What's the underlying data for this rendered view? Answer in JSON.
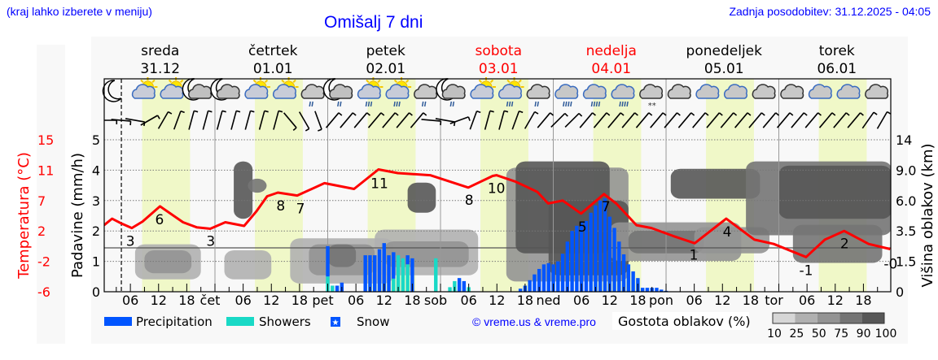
{
  "header": {
    "hint": "(kraj lahko izberete v meniju)",
    "title": "Omišalj 7 dni",
    "updated": "Zadnja posodobitev: 31.12.2025 - 04:05"
  },
  "days": [
    {
      "name": "sreda",
      "date": "31.12",
      "weekend": false
    },
    {
      "name": "četrtek",
      "date": "01.01",
      "weekend": false
    },
    {
      "name": "petek",
      "date": "02.01",
      "weekend": false
    },
    {
      "name": "sobota",
      "date": "03.01",
      "weekend": true
    },
    {
      "name": "nedelja",
      "date": "04.01",
      "weekend": true
    },
    {
      "name": "ponedeljek",
      "date": "05.01",
      "weekend": false
    },
    {
      "name": "torek",
      "date": "06.01",
      "weekend": false
    }
  ],
  "colors": {
    "temperature": "#ff0000",
    "precipitation": "#0055ff",
    "showers": "#19d9c6",
    "daylight": "#f0f8c8",
    "weekend": "#ff0000",
    "link": "#0000ff"
  },
  "chart_data": {
    "type": "line",
    "x_unit": "hours since 31.12 00:00",
    "xlim": [
      0.4,
      168
    ],
    "now_hour": 4.08,
    "daylight_hours": [
      8.5,
      18.7
    ],
    "x_tick_labels": {
      "hours": [
        "06",
        "12",
        "18"
      ],
      "midnights": [
        "čet",
        "pet",
        "sob",
        "ned",
        "pon",
        "tor"
      ]
    },
    "y_left": {
      "label": "Padavine (mm/h)",
      "ticks": [
        "0",
        "1",
        "2",
        "3",
        "4",
        "5"
      ],
      "ylim": [
        0,
        5.3
      ]
    },
    "y_temp": {
      "label": "Temperatura (°C)",
      "ticks": [
        "-6",
        "-2",
        "2",
        "7",
        "11",
        "15"
      ],
      "ylim": [
        -6,
        15
      ]
    },
    "y_right": {
      "label": "Višina oblakov (km)",
      "ticks": [
        "0",
        "1.5",
        "3.5",
        "6.0",
        "9.0",
        "14"
      ]
    },
    "temperature": [
      [
        0.4,
        3.2
      ],
      [
        2.1,
        4.1
      ],
      [
        4.2,
        3.4
      ],
      [
        6.3,
        2.8
      ],
      [
        8.6,
        3.7
      ],
      [
        12.3,
        5.8
      ],
      [
        17.2,
        3.6
      ],
      [
        20.1,
        2.9
      ],
      [
        23.0,
        2.7
      ],
      [
        26.2,
        3.6
      ],
      [
        30.2,
        3.1
      ],
      [
        32.8,
        5.1
      ],
      [
        35.1,
        7.2
      ],
      [
        37.4,
        7.7
      ],
      [
        41.5,
        7.3
      ],
      [
        47.3,
        9.0
      ],
      [
        53.6,
        8.2
      ],
      [
        58.8,
        10.9
      ],
      [
        62.9,
        10.4
      ],
      [
        69.8,
        10.1
      ],
      [
        77.9,
        8.4
      ],
      [
        83.1,
        10.0
      ],
      [
        83.9,
        10.1
      ],
      [
        88.0,
        9.2
      ],
      [
        92.6,
        7.8
      ],
      [
        94.9,
        6.2
      ],
      [
        98.0,
        6.6
      ],
      [
        101.9,
        4.8
      ],
      [
        106.8,
        7.5
      ],
      [
        109.4,
        6.2
      ],
      [
        113.7,
        3.2
      ],
      [
        116.9,
        2.8
      ],
      [
        121.5,
        1.7
      ],
      [
        126.1,
        0.7
      ],
      [
        132.8,
        4.1
      ],
      [
        138.8,
        1.2
      ],
      [
        142.9,
        0.6
      ],
      [
        149.8,
        -1.2
      ],
      [
        153.8,
        1.2
      ],
      [
        157.9,
        2.4
      ],
      [
        163.1,
        0.6
      ],
      [
        167.7,
        -0.1
      ]
    ],
    "temperature_labels": [
      {
        "hour": 6.0,
        "t": 1.0,
        "text": "3"
      },
      {
        "hour": 12.2,
        "t": 4.0,
        "text": "6"
      },
      {
        "hour": 23.1,
        "t": 1.0,
        "text": "3"
      },
      {
        "hour": 38.0,
        "t": 5.9,
        "text": "8"
      },
      {
        "hour": 42.2,
        "t": 5.5,
        "text": "7"
      },
      {
        "hour": 59.0,
        "t": 9.0,
        "text": "11"
      },
      {
        "hour": 78.1,
        "t": 6.7,
        "text": "8"
      },
      {
        "hour": 83.9,
        "t": 8.3,
        "text": "10"
      },
      {
        "hour": 102.2,
        "t": 3.0,
        "text": "5"
      },
      {
        "hour": 107.2,
        "t": 5.8,
        "text": "7"
      },
      {
        "hour": 125.9,
        "t": -0.9,
        "text": "1"
      },
      {
        "hour": 133.0,
        "t": 2.3,
        "text": "4"
      },
      {
        "hour": 149.8,
        "t": -3.0,
        "text": "-1"
      },
      {
        "hour": 158.0,
        "t": 0.7,
        "text": "2"
      },
      {
        "hour": 167.8,
        "t": -2.1,
        "text": "-0"
      }
    ],
    "precipitation": [
      [
        48,
        1.5,
        0.5
      ],
      [
        49,
        0.2,
        0.2
      ],
      [
        50,
        0.2,
        0
      ],
      [
        51,
        0.3,
        0
      ],
      [
        56,
        1.2,
        0
      ],
      [
        57,
        1.2,
        0
      ],
      [
        58,
        1.2,
        0
      ],
      [
        59,
        1.4,
        0
      ],
      [
        60,
        1.6,
        0
      ],
      [
        61,
        1.2,
        0
      ],
      [
        62,
        1.3,
        0.43
      ],
      [
        63,
        1.2,
        1.2
      ],
      [
        64,
        1.1,
        1.1
      ],
      [
        65,
        1.2,
        0.9
      ],
      [
        66,
        1.1,
        0
      ],
      [
        71,
        1.1,
        1.1
      ],
      [
        74,
        0.15,
        0.15
      ],
      [
        75,
        0.35,
        0.35
      ],
      [
        76,
        0.45,
        0
      ],
      [
        77,
        0.35,
        0
      ],
      [
        78,
        0.15,
        0.15
      ],
      [
        89,
        0.1,
        0
      ],
      [
        90,
        0.2,
        0
      ],
      [
        91,
        0.38,
        0
      ],
      [
        92,
        0.57,
        0
      ],
      [
        93,
        0.75,
        0
      ],
      [
        94,
        0.9,
        0
      ],
      [
        95,
        0.94,
        0
      ],
      [
        96,
        0.9,
        0
      ],
      [
        97,
        1.0,
        0
      ],
      [
        98,
        1.25,
        0
      ],
      [
        99,
        1.65,
        0
      ],
      [
        100,
        2.0,
        0
      ],
      [
        101,
        2.17,
        0
      ],
      [
        102,
        2.3,
        0
      ],
      [
        103,
        2.33,
        0
      ],
      [
        104,
        2.6,
        0
      ],
      [
        105,
        2.84,
        0
      ],
      [
        106,
        3.0,
        0
      ],
      [
        107,
        3.07,
        0
      ],
      [
        108,
        2.47,
        0
      ],
      [
        109,
        2.1,
        0
      ],
      [
        110,
        1.65,
        0
      ],
      [
        111,
        1.23,
        0
      ],
      [
        112,
        0.9,
        0
      ],
      [
        113,
        0.67,
        0
      ],
      [
        114,
        0.45,
        0
      ],
      [
        115,
        0.13,
        0
      ],
      [
        116,
        0.13,
        0
      ],
      [
        117,
        0.13,
        0
      ],
      [
        118,
        0.13,
        0
      ],
      [
        119,
        0.07,
        0
      ],
      [
        120,
        0.03,
        0
      ]
    ],
    "cloud_density": [
      {
        "h": [
          7,
          21
        ],
        "km": [
          0.6,
          2.6
        ],
        "d": 25
      },
      {
        "h": [
          9,
          19
        ],
        "km": [
          0.9,
          2.2
        ],
        "d": 50
      },
      {
        "h": [
          26,
          36
        ],
        "km": [
          0.6,
          2.2
        ],
        "d": 25
      },
      {
        "h": [
          28,
          32
        ],
        "km": [
          4.5,
          10.5
        ],
        "d": 90
      },
      {
        "h": [
          31,
          35
        ],
        "km": [
          6.8,
          8.2
        ],
        "d": 75
      },
      {
        "h": [
          40,
          62
        ],
        "km": [
          0.4,
          3.0
        ],
        "d": 25
      },
      {
        "h": [
          44,
          58
        ],
        "km": [
          0.8,
          2.6
        ],
        "d": 50
      },
      {
        "h": [
          48,
          54
        ],
        "km": [
          1.2,
          2.6
        ],
        "d": 75
      },
      {
        "h": [
          58,
          80
        ],
        "km": [
          0.8,
          3.6
        ],
        "d": 25
      },
      {
        "h": [
          60,
          78
        ],
        "km": [
          1.2,
          2.8
        ],
        "d": 50
      },
      {
        "h": [
          65,
          71
        ],
        "km": [
          5.0,
          7.8
        ],
        "d": 90
      },
      {
        "h": [
          86,
          112
        ],
        "km": [
          0.5,
          9.5
        ],
        "d": 50
      },
      {
        "h": [
          88,
          108
        ],
        "km": [
          2.0,
          10.5
        ],
        "d": 90
      },
      {
        "h": [
          95,
          112
        ],
        "km": [
          0.8,
          6.0
        ],
        "d": 90
      },
      {
        "h": [
          108,
          136
        ],
        "km": [
          1.5,
          4.2
        ],
        "d": 50
      },
      {
        "h": [
          112,
          128
        ],
        "km": [
          2.0,
          3.5
        ],
        "d": 75
      },
      {
        "h": [
          121,
          140
        ],
        "km": [
          6.2,
          9.3
        ],
        "d": 90
      },
      {
        "h": [
          126,
          142
        ],
        "km": [
          2.0,
          3.8
        ],
        "d": 50
      },
      {
        "h": [
          137,
          168
        ],
        "km": [
          3.2,
          10.5
        ],
        "d": 75
      },
      {
        "h": [
          144,
          168
        ],
        "km": [
          4.5,
          9.8
        ],
        "d": 90
      },
      {
        "h": [
          147,
          166
        ],
        "km": [
          1.4,
          4.0
        ],
        "d": 75
      }
    ],
    "cloud_legend": {
      "title": "Gostota oblakov (%)",
      "levels": [
        "10",
        "25",
        "50",
        "75",
        "90",
        "100"
      ],
      "colors": [
        "#d6d6d6",
        "#b0b0b0",
        "#939393",
        "#747474",
        "#575757"
      ]
    },
    "weather_icons": [
      "moon",
      "sun-cloud",
      "sun-cloud",
      "moon-cloud",
      "moon-cloud",
      "sun-cloud",
      "sun-cloud",
      "cloud-rain",
      "moon-cloud-rain",
      "sun-cloud-rain",
      "sun-cloud-rain",
      "cloud-rain",
      "moon-cloud-rain",
      "sun-cloud",
      "sun-cloud-rain",
      "cloud-rain",
      "cloud-heavy-rain",
      "cloud-heavy-rain",
      "cloud-heavy-rain",
      "cloud-snow",
      "cloud",
      "cloud",
      "cloud",
      "cloud",
      "cloud",
      "cloud",
      "cloud",
      "cloud"
    ],
    "wind": [
      [
        1,
        90
      ],
      [
        4,
        95
      ],
      [
        7,
        100
      ],
      [
        10,
        60
      ],
      [
        13,
        30
      ],
      [
        16,
        20
      ],
      [
        19,
        15
      ],
      [
        22,
        15
      ],
      [
        25,
        15
      ],
      [
        28,
        15
      ],
      [
        31,
        15
      ],
      [
        34,
        15
      ],
      [
        37,
        15
      ],
      [
        40,
        140
      ],
      [
        43,
        150
      ],
      [
        46,
        160
      ],
      [
        49,
        40
      ],
      [
        52,
        40
      ],
      [
        55,
        40
      ],
      [
        58,
        40
      ],
      [
        61,
        40
      ],
      [
        64,
        40
      ],
      [
        67,
        40
      ],
      [
        70,
        95
      ],
      [
        73,
        100
      ],
      [
        76,
        70
      ],
      [
        79,
        20
      ],
      [
        82,
        15
      ],
      [
        85,
        15
      ],
      [
        88,
        20
      ],
      [
        91,
        30
      ],
      [
        94,
        40
      ],
      [
        97,
        45
      ],
      [
        100,
        45
      ],
      [
        103,
        40
      ],
      [
        106,
        40
      ],
      [
        109,
        40
      ],
      [
        112,
        40
      ],
      [
        115,
        40
      ],
      [
        118,
        40
      ],
      [
        121,
        40
      ],
      [
        124,
        40
      ],
      [
        127,
        40
      ],
      [
        130,
        40
      ],
      [
        133,
        40
      ],
      [
        136,
        40
      ],
      [
        139,
        40
      ],
      [
        142,
        40
      ],
      [
        145,
        40
      ],
      [
        148,
        40
      ],
      [
        151,
        40
      ],
      [
        154,
        40
      ],
      [
        157,
        40
      ],
      [
        160,
        40
      ],
      [
        163,
        35
      ],
      [
        166,
        30
      ]
    ],
    "legend": [
      {
        "label": "Precipitation",
        "key": "precipitation"
      },
      {
        "label": "Showers",
        "key": "showers"
      },
      {
        "label": "Snow",
        "key": "snow"
      }
    ],
    "credit": "© vreme.us & vreme.pro"
  }
}
